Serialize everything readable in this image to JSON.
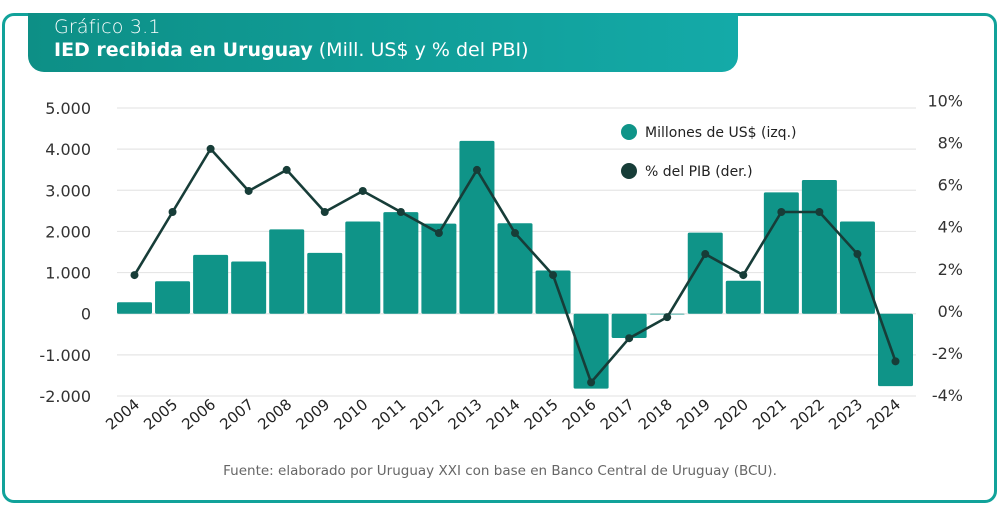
{
  "header": {
    "subtitle": "Gráfico 3.1",
    "title_bold": "IED recibida en Uruguay",
    "title_light": "(Mill. US$ y % del PBI)"
  },
  "source": "Fuente: elaborado por Uruguay XXI con base en Banco Central de Uruguay (BCU).",
  "colors": {
    "bar": "#0f9488",
    "line": "#173d38",
    "frame": "#11a29a",
    "grid": "#e6e6e6"
  },
  "chart_data": {
    "type": "bar+line",
    "title": "IED recibida en Uruguay (Mill. US$ y % del PBI)",
    "categories": [
      "2004",
      "2005",
      "2006",
      "2007",
      "2008",
      "2009",
      "2010",
      "2011",
      "2012",
      "2013",
      "2014",
      "2015",
      "2016",
      "2017",
      "2018",
      "2019",
      "2020",
      "2021",
      "2022",
      "2023",
      "2024"
    ],
    "series": [
      {
        "name": "Millones de US$ (izq.)",
        "type": "bar",
        "axis": "left",
        "values": [
          280,
          790,
          1430,
          1270,
          2050,
          1480,
          2240,
          2470,
          2190,
          4200,
          2200,
          1050,
          -1820,
          -590,
          -10,
          1970,
          800,
          2950,
          3250,
          2240,
          -1760
        ]
      },
      {
        "name": "% del PIB (der.)",
        "type": "line",
        "axis": "right",
        "values": [
          1.7,
          4.7,
          7.7,
          5.7,
          6.7,
          4.7,
          5.7,
          4.7,
          3.7,
          6.7,
          3.7,
          1.7,
          -3.4,
          -1.3,
          -0.3,
          2.7,
          1.7,
          4.7,
          4.7,
          2.7,
          -2.4
        ]
      }
    ],
    "left_axis": {
      "ylim": [
        -2000,
        5000
      ],
      "ticks": [
        5000,
        4000,
        3000,
        2000,
        1000,
        0,
        -1000,
        -2000
      ],
      "tick_labels": [
        "5.000",
        "4.000",
        "3.000",
        "2.000",
        "1.000",
        "0",
        "-1.000",
        "-2.000"
      ]
    },
    "right_axis": {
      "ylim": [
        -4,
        10
      ],
      "ticks": [
        10,
        8,
        6,
        4,
        2,
        0,
        -2,
        -4
      ],
      "tick_labels": [
        "10%",
        "8%",
        "6%",
        "4%",
        "2%",
        "0%",
        "-2%",
        "-4%"
      ]
    },
    "legend": {
      "placement": "top-right",
      "entries": [
        "Millones de US$ (izq.)",
        "% del PIB (der.)"
      ]
    },
    "grid": true
  }
}
